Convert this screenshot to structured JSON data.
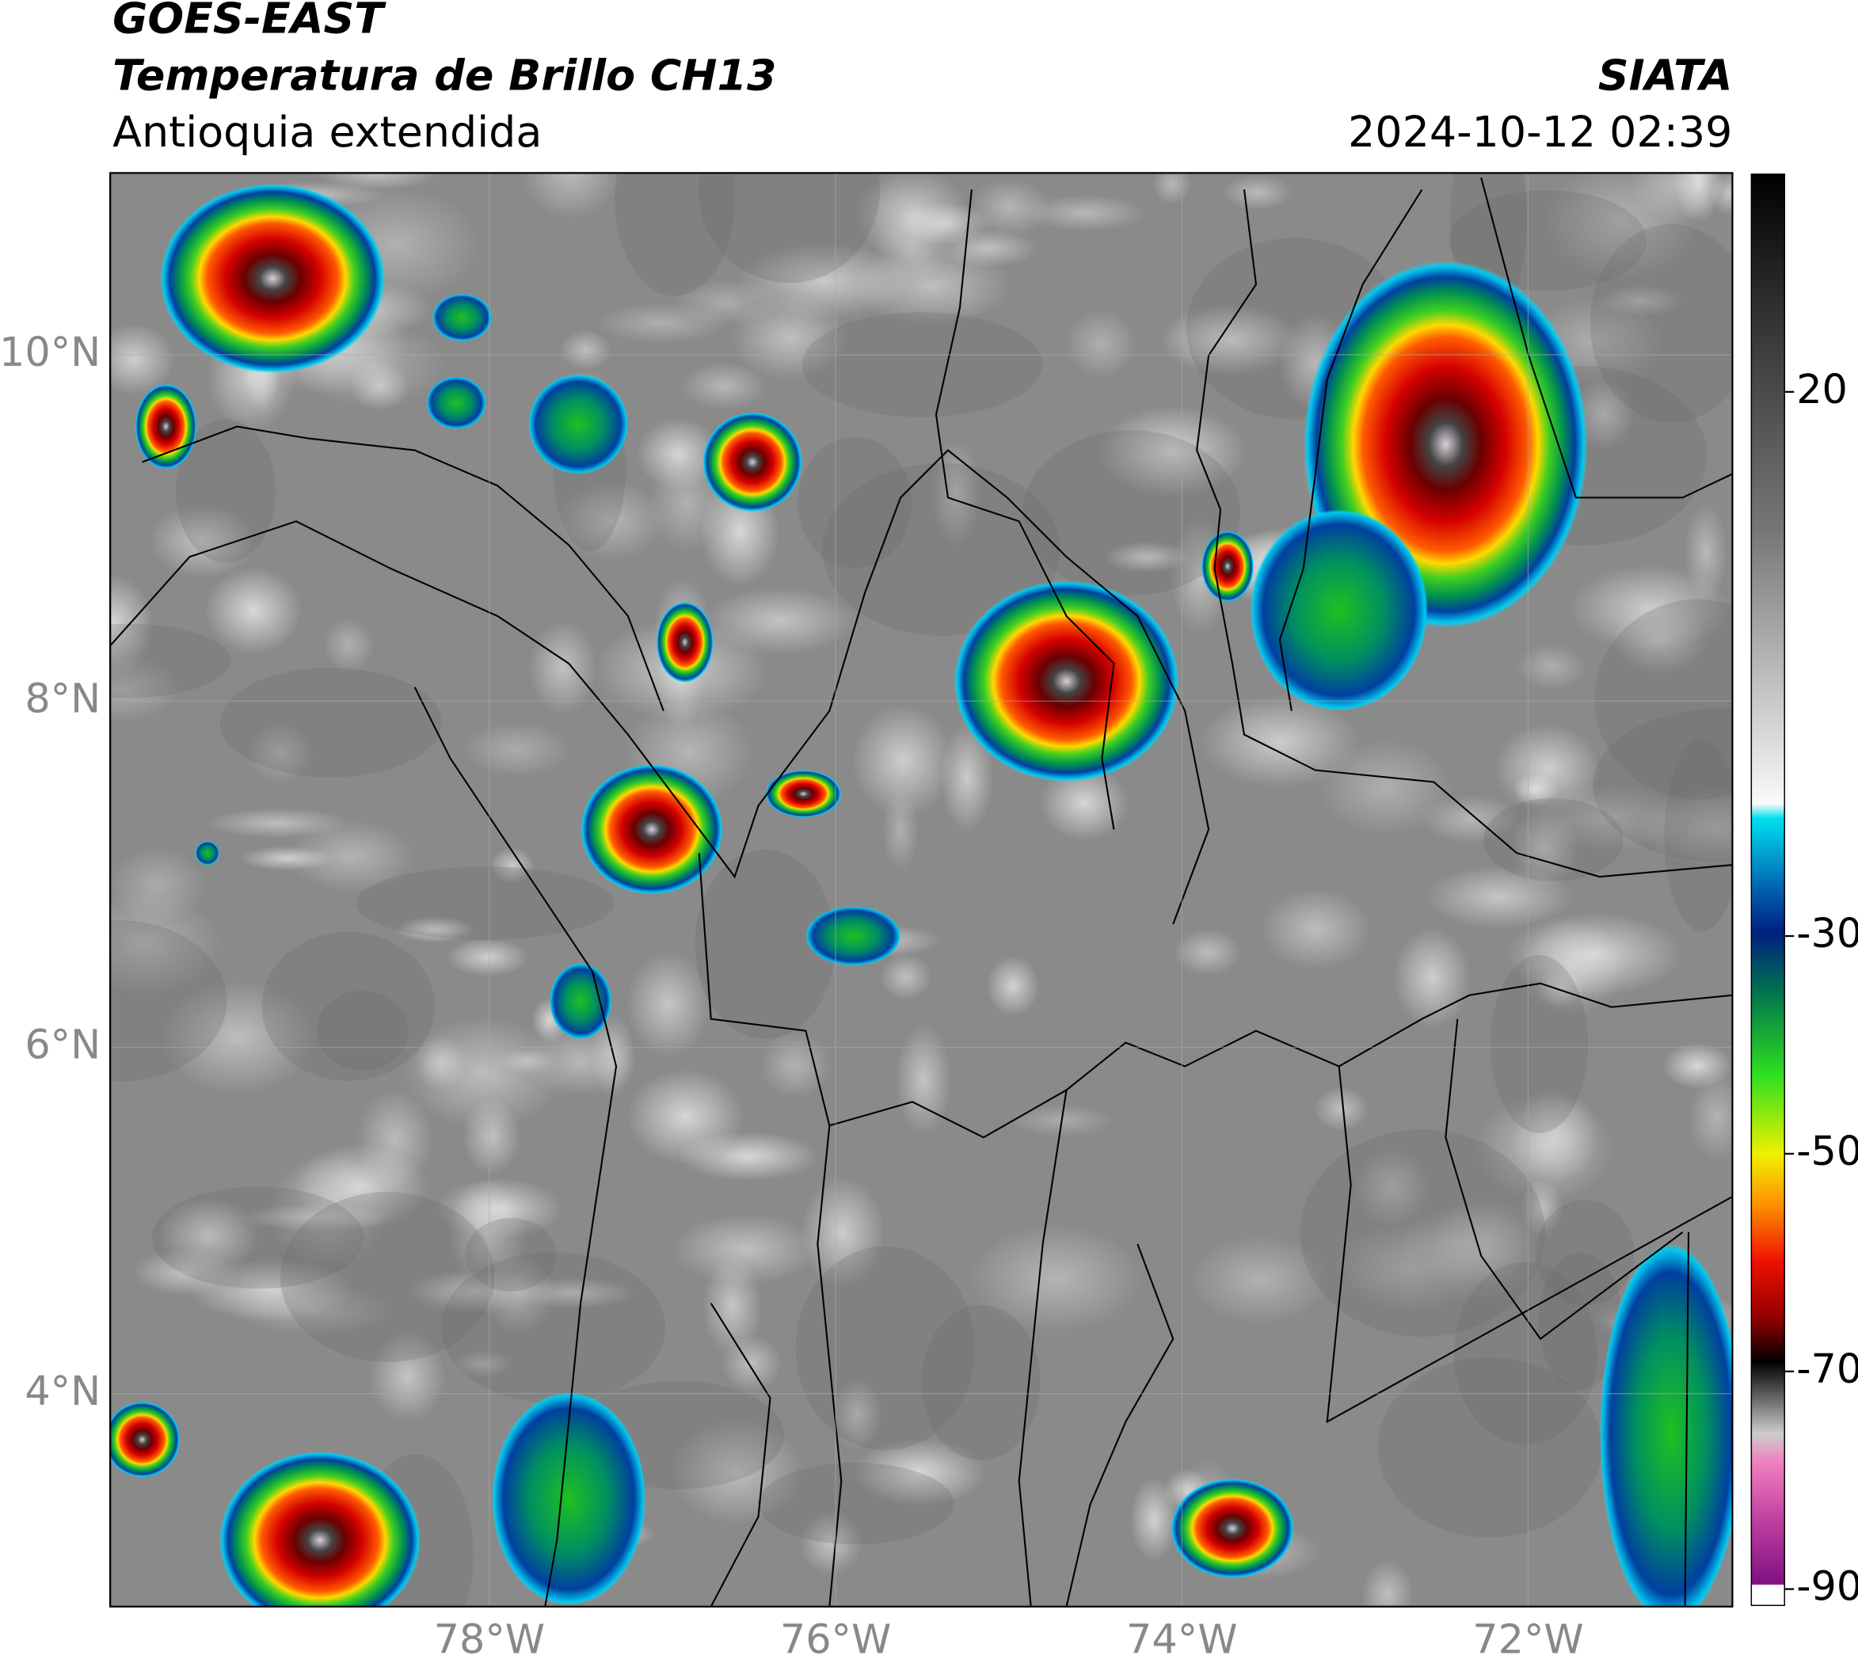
{
  "header": {
    "title": "GOES-EAST",
    "subtitle": "Temperatura de Brillo CH13",
    "region": "Antioquia extendida",
    "source": "SIATA",
    "datetime": "2024-10-12 02:39"
  },
  "map": {
    "xlim": [
      -80.19,
      -70.82
    ],
    "ylim": [
      2.77,
      11.05
    ],
    "xticks": [
      {
        "value": -78,
        "label": "78°W"
      },
      {
        "value": -76,
        "label": "76°W"
      },
      {
        "value": -74,
        "label": "74°W"
      },
      {
        "value": -72,
        "label": "72°W"
      }
    ],
    "yticks": [
      {
        "value": 10,
        "label": "10°N"
      },
      {
        "value": 8,
        "label": "8°N"
      },
      {
        "value": 6,
        "label": "6°N"
      },
      {
        "value": 4,
        "label": "4°N"
      }
    ]
  },
  "colorbar": {
    "lim": [
      -91.5,
      40
    ],
    "ticks": [
      20,
      -30,
      -50,
      -70,
      -90
    ]
  }
}
